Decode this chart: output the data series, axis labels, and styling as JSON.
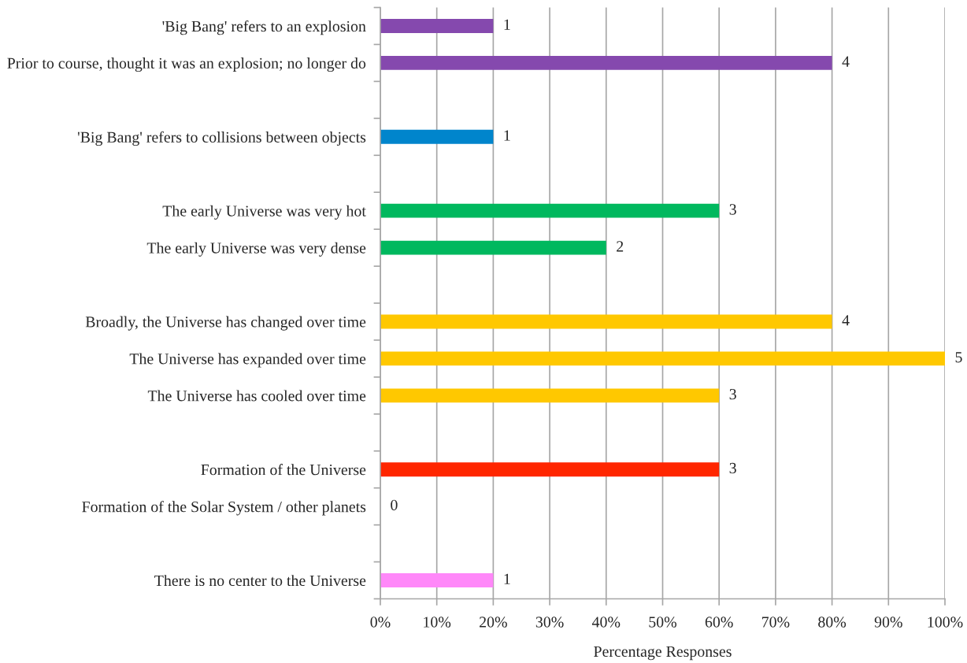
{
  "chart_data": {
    "type": "bar",
    "orientation": "horizontal",
    "xlabel": "Percentage Responses",
    "categories": [
      "'Big Bang' refers to an explosion",
      "Prior to course, thought it was an explosion; no longer do",
      null,
      "'Big Bang' refers to collisions between objects",
      null,
      "The early Universe was very hot",
      "The early Universe was very dense",
      null,
      "Broadly, the Universe has changed over time",
      "The Universe has expanded over time",
      "The Universe has cooled over time",
      null,
      "Formation of the Universe",
      "Formation of the Solar System / other planets",
      null,
      "There is no center to the Universe"
    ],
    "values": [
      20,
      80,
      null,
      20,
      null,
      60,
      40,
      null,
      80,
      100,
      60,
      null,
      60,
      0,
      null,
      20
    ],
    "colors": [
      "#8549ae",
      "#8549ae",
      null,
      "#0085cc",
      null,
      "#00b85e",
      "#00b85e",
      null,
      "#ffc800",
      "#ffc800",
      "#ffc800",
      null,
      "#ff2600",
      "#ff2600",
      null,
      "#ff88f9"
    ],
    "annotations": [
      {
        "text": "1",
        "x": 20,
        "y": "'Big Bang' refers to an explosion"
      },
      {
        "text": "4",
        "x": 80,
        "y": "Prior to course, thought it was an explosion; no longer do"
      },
      {
        "text": "1",
        "x": 20,
        "y": "'Big Bang' refers to collisions between objects"
      },
      {
        "text": "3",
        "x": 60,
        "y": "The early Universe was very hot"
      },
      {
        "text": "2",
        "x": 40,
        "y": "The early Universe was very dense"
      },
      {
        "text": "4",
        "x": 80,
        "y": "Broadly, the Universe has changed over time"
      },
      {
        "text": "5",
        "x": 100,
        "y": "The Universe has expanded over time"
      },
      {
        "text": "3",
        "x": 60,
        "y": "The Universe has cooled over time"
      },
      {
        "text": "3",
        "x": 60,
        "y": "Formation of the Universe"
      },
      {
        "text": "0",
        "x": 0,
        "y": "Formation of the Solar System / other planets"
      },
      {
        "text": "1",
        "x": 20,
        "y": "There is no center to the Universe"
      }
    ],
    "xlim": [
      0,
      100
    ],
    "xticks": [
      {
        "value": 0,
        "label": "0%"
      },
      {
        "value": 10,
        "label": "10%"
      },
      {
        "value": 20,
        "label": "20%"
      },
      {
        "value": 30,
        "label": "30%"
      },
      {
        "value": 40,
        "label": "40%"
      },
      {
        "value": 50,
        "label": "50%"
      },
      {
        "value": 60,
        "label": "60%"
      },
      {
        "value": 70,
        "label": "70%"
      },
      {
        "value": 80,
        "label": "80%"
      },
      {
        "value": 90,
        "label": "90%"
      },
      {
        "value": 100,
        "label": "100%"
      }
    ],
    "grid": "x"
  }
}
